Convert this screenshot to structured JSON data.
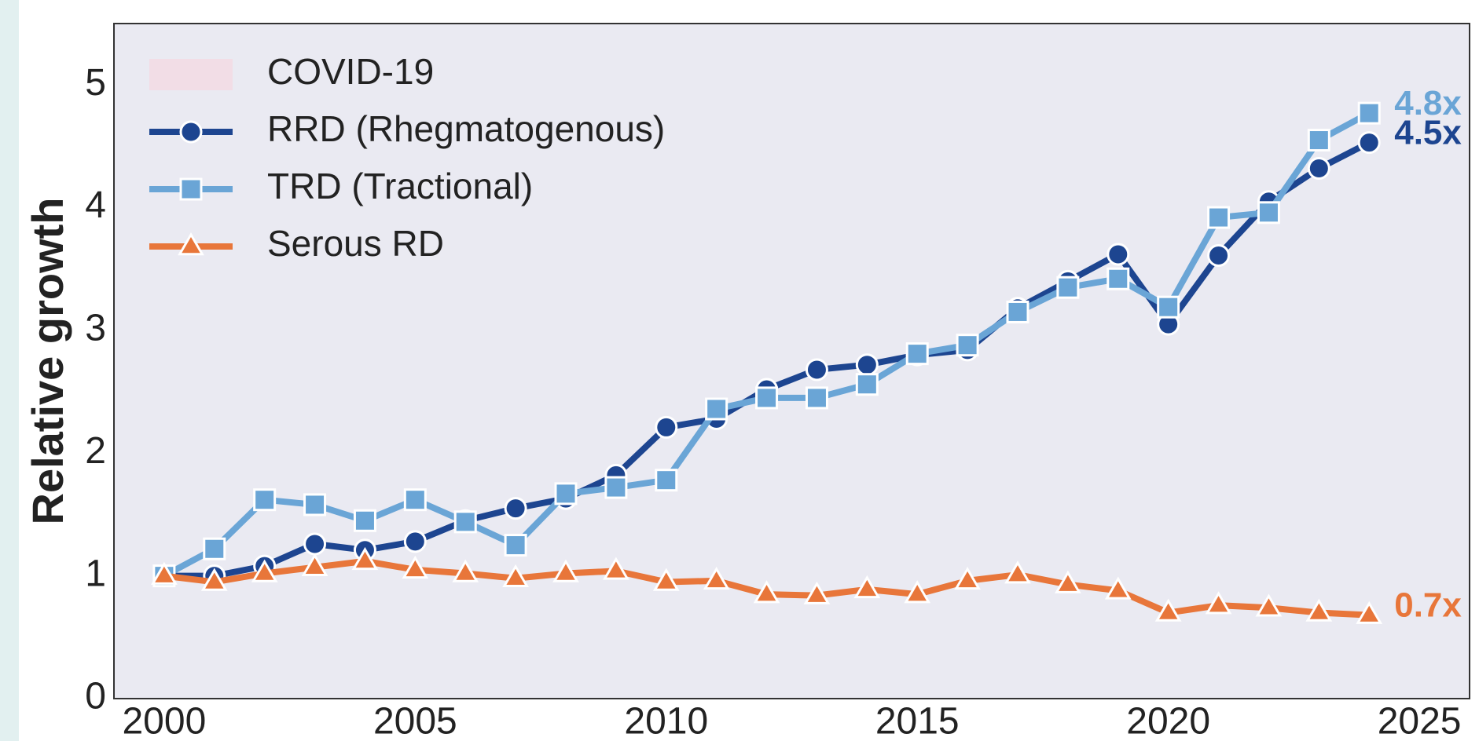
{
  "chart_data": {
    "type": "line",
    "ylabel": "Relative growth",
    "x": [
      2000,
      2001,
      2002,
      2003,
      2004,
      2005,
      2006,
      2007,
      2008,
      2009,
      2010,
      2011,
      2012,
      2013,
      2014,
      2015,
      2016,
      2017,
      2018,
      2019,
      2020,
      2021,
      2022,
      2023,
      2024
    ],
    "series": [
      {
        "name": "RRD (Rhegmatogenous)",
        "color": "#1d4590",
        "marker": "circle",
        "end_label": "4.5x",
        "values": [
          1.0,
          1.0,
          1.08,
          1.26,
          1.21,
          1.28,
          1.45,
          1.55,
          1.63,
          1.82,
          2.21,
          2.28,
          2.52,
          2.68,
          2.72,
          2.8,
          2.84,
          3.18,
          3.4,
          3.62,
          3.05,
          3.61,
          4.05,
          4.32,
          4.53
        ]
      },
      {
        "name": "TRD (Tractional)",
        "color": "#6aa5d6",
        "marker": "square",
        "end_label": "4.8x",
        "values": [
          1.0,
          1.22,
          1.62,
          1.58,
          1.45,
          1.62,
          1.44,
          1.25,
          1.67,
          1.72,
          1.78,
          2.36,
          2.45,
          2.45,
          2.56,
          2.81,
          2.88,
          3.15,
          3.35,
          3.42,
          3.19,
          3.92,
          3.96,
          4.55,
          4.77
        ]
      },
      {
        "name": "Serous RD",
        "color": "#e8763a",
        "marker": "triangle",
        "end_label": "0.7x",
        "values": [
          1.0,
          0.95,
          1.02,
          1.07,
          1.12,
          1.05,
          1.02,
          0.98,
          1.02,
          1.04,
          0.95,
          0.96,
          0.85,
          0.84,
          0.89,
          0.85,
          0.96,
          1.01,
          0.93,
          0.88,
          0.7,
          0.76,
          0.74,
          0.7,
          0.68
        ]
      }
    ],
    "shade": {
      "label": "COVID-19",
      "x": [
        2020,
        2021
      ],
      "color": "#f4d8e2"
    },
    "xlim": [
      1999,
      2026
    ],
    "xticks": [
      2000,
      2005,
      2010,
      2015,
      2020,
      2025
    ],
    "ylim": [
      0,
      5.5
    ],
    "yticks": [
      0,
      1,
      2,
      3,
      4,
      5
    ],
    "grid": true,
    "legend": "upper left"
  }
}
